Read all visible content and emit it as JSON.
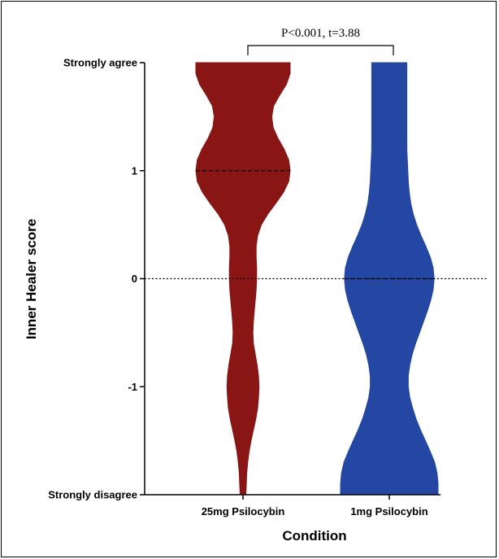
{
  "chart_data": {
    "type": "violin",
    "title": "",
    "xlabel": "Condition",
    "ylabel": "Inner Healer score",
    "ylim": [
      -2,
      2
    ],
    "yticks": [
      {
        "value": 2,
        "label": "Strongly agree"
      },
      {
        "value": 1,
        "label": "1"
      },
      {
        "value": 0,
        "label": "0"
      },
      {
        "value": -1,
        "label": "-1"
      },
      {
        "value": -2,
        "label": "Strongly disagree"
      }
    ],
    "reference_line": {
      "y": 0,
      "style": "dotted"
    },
    "categories": [
      "25mg Psilocybin",
      "1mg Psilocybin"
    ],
    "series": [
      {
        "name": "25mg Psilocybin",
        "color": "#8a1515",
        "median": 1,
        "density_profile": [
          [
            -2.0,
            0.06
          ],
          [
            -1.9,
            0.07
          ],
          [
            -1.8,
            0.08
          ],
          [
            -1.7,
            0.1
          ],
          [
            -1.6,
            0.13
          ],
          [
            -1.5,
            0.17
          ],
          [
            -1.4,
            0.22
          ],
          [
            -1.3,
            0.27
          ],
          [
            -1.2,
            0.31
          ],
          [
            -1.1,
            0.33
          ],
          [
            -1.0,
            0.34
          ],
          [
            -0.9,
            0.33
          ],
          [
            -0.8,
            0.3
          ],
          [
            -0.7,
            0.26
          ],
          [
            -0.6,
            0.22
          ],
          [
            -0.5,
            0.21
          ],
          [
            -0.4,
            0.22
          ],
          [
            -0.3,
            0.24
          ],
          [
            -0.2,
            0.26
          ],
          [
            -0.1,
            0.28
          ],
          [
            0.0,
            0.29
          ],
          [
            0.1,
            0.29
          ],
          [
            0.2,
            0.28
          ],
          [
            0.3,
            0.28
          ],
          [
            0.4,
            0.31
          ],
          [
            0.5,
            0.39
          ],
          [
            0.6,
            0.53
          ],
          [
            0.7,
            0.7
          ],
          [
            0.8,
            0.86
          ],
          [
            0.9,
            0.97
          ],
          [
            1.0,
            1.0
          ],
          [
            1.1,
            0.97
          ],
          [
            1.2,
            0.87
          ],
          [
            1.3,
            0.74
          ],
          [
            1.4,
            0.64
          ],
          [
            1.5,
            0.61
          ],
          [
            1.6,
            0.65
          ],
          [
            1.7,
            0.78
          ],
          [
            1.8,
            0.92
          ],
          [
            1.9,
            1.0
          ],
          [
            2.0,
            1.0
          ]
        ]
      },
      {
        "name": "1mg Psilocybin",
        "color": "#2347a2",
        "median": 0,
        "density_profile": [
          [
            -2.0,
            1.0
          ],
          [
            -1.9,
            1.0
          ],
          [
            -1.8,
            0.98
          ],
          [
            -1.7,
            0.93
          ],
          [
            -1.6,
            0.84
          ],
          [
            -1.5,
            0.74
          ],
          [
            -1.4,
            0.64
          ],
          [
            -1.3,
            0.55
          ],
          [
            -1.2,
            0.48
          ],
          [
            -1.1,
            0.42
          ],
          [
            -1.0,
            0.39
          ],
          [
            -0.9,
            0.39
          ],
          [
            -0.8,
            0.42
          ],
          [
            -0.7,
            0.47
          ],
          [
            -0.6,
            0.54
          ],
          [
            -0.5,
            0.62
          ],
          [
            -0.4,
            0.7
          ],
          [
            -0.3,
            0.78
          ],
          [
            -0.2,
            0.85
          ],
          [
            -0.1,
            0.9
          ],
          [
            0.0,
            0.92
          ],
          [
            0.1,
            0.9
          ],
          [
            0.2,
            0.84
          ],
          [
            0.3,
            0.75
          ],
          [
            0.4,
            0.65
          ],
          [
            0.5,
            0.56
          ],
          [
            0.6,
            0.49
          ],
          [
            0.7,
            0.44
          ],
          [
            0.8,
            0.41
          ],
          [
            0.9,
            0.39
          ],
          [
            1.0,
            0.38
          ],
          [
            1.1,
            0.37
          ],
          [
            1.2,
            0.36
          ],
          [
            1.3,
            0.36
          ],
          [
            1.4,
            0.36
          ],
          [
            1.5,
            0.36
          ],
          [
            1.6,
            0.36
          ],
          [
            1.7,
            0.36
          ],
          [
            1.8,
            0.36
          ],
          [
            1.9,
            0.36
          ],
          [
            2.0,
            0.36
          ]
        ]
      }
    ],
    "annotations": [
      {
        "text": "P<0.001, t=3.88",
        "between": [
          "25mg Psilocybin",
          "1mg Psilocybin"
        ],
        "type": "significance-bracket"
      }
    ]
  }
}
